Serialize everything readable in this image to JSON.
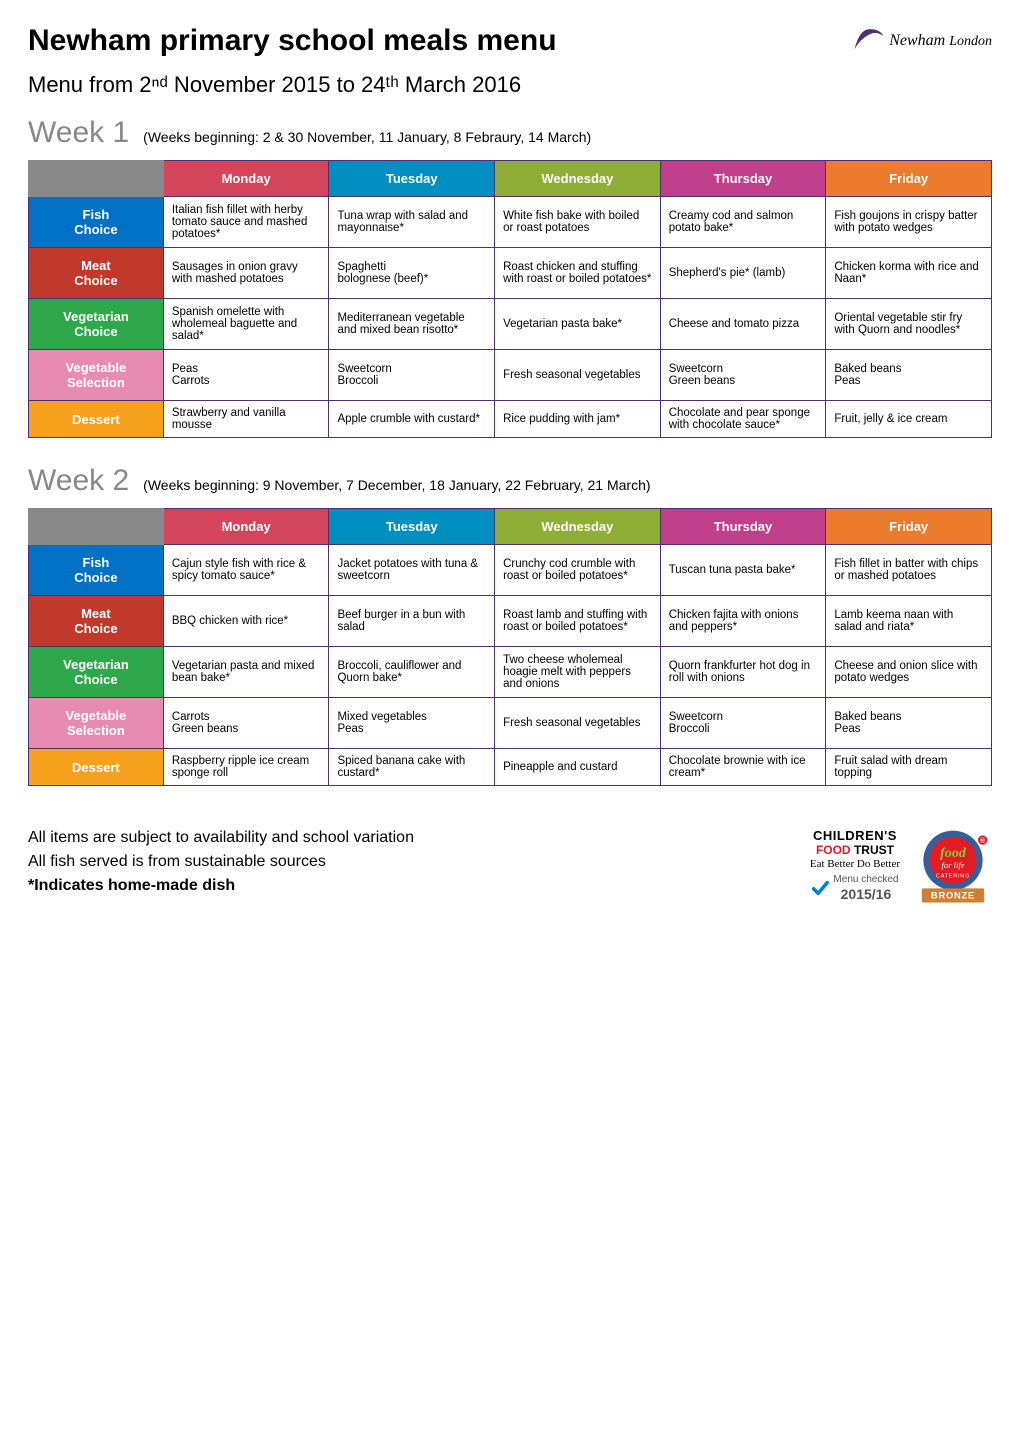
{
  "title": "Newham primary school meals menu",
  "subtitle": "Menu from 2ⁿᵈ November  2015 to 24ᵗʰ March  2016",
  "logo": {
    "text1": "Newham",
    "text2": "London",
    "swoosh_color": "#4f2f70"
  },
  "weeks": [
    {
      "label": "Week 1",
      "desc": "(Weeks beginning: 2 & 30 November, 11 January, 8 Febraury, 14 March)",
      "days": [
        "Monday",
        "Tuesday",
        "Wednesday",
        "Thursday",
        "Friday"
      ],
      "day_colors": [
        "#d4455b",
        "#008fbe",
        "#8fae35",
        "#c03f8a",
        "#ed7b2e"
      ],
      "rows": [
        {
          "label": "Fish\nChoice",
          "color": "#0071c5",
          "cells": [
            "Italian fish fillet with herby tomato sauce and mashed potatoes*",
            "Tuna wrap with salad and mayonnaise*",
            "White fish bake with boiled or roast potatoes",
            "Creamy cod  and salmon potato bake*",
            "Fish goujons in crispy batter with potato wedges"
          ]
        },
        {
          "label": "Meat\nChoice",
          "color": "#c0392b",
          "cells": [
            "Sausages in onion gravy with mashed potatoes",
            "Spaghetti\nbolognese (beef)*",
            "Roast chicken and stuffing with roast or boiled potatoes*",
            "Shepherd's pie* (lamb)",
            "Chicken korma with rice and Naan*"
          ]
        },
        {
          "label": "Vegetarian\nChoice",
          "color": "#2ea84a",
          "cells": [
            "Spanish omelette with wholemeal baguette and salad*",
            "Mediterranean vegetable and mixed bean risotto*",
            "Vegetarian pasta bake*",
            "Cheese and tomato pizza",
            "Oriental vegetable stir fry with Quorn and noodles*"
          ]
        },
        {
          "label": "Vegetable\nSelection",
          "color": "#e78bb0",
          "cells": [
            "Peas\nCarrots",
            "Sweetcorn\nBroccoli",
            "Fresh seasonal vegetables",
            "Sweetcorn\nGreen beans",
            "Baked beans\nPeas"
          ]
        },
        {
          "label": "Dessert",
          "color": "#f6a21e",
          "cells": [
            "Strawberry and vanilla mousse",
            "Apple crumble with custard*",
            "Rice pudding with jam*",
            "Chocolate and pear sponge with chocolate sauce*",
            "Fruit, jelly & ice cream"
          ]
        }
      ]
    },
    {
      "label": "Week 2",
      "desc": "(Weeks beginning: 9 November, 7 December, 18 January, 22 February, 21 March)",
      "days": [
        "Monday",
        "Tuesday",
        "Wednesday",
        "Thursday",
        "Friday"
      ],
      "day_colors": [
        "#d4455b",
        "#008fbe",
        "#8fae35",
        "#c03f8a",
        "#ed7b2e"
      ],
      "rows": [
        {
          "label": "Fish\nChoice",
          "color": "#0071c5",
          "cells": [
            "Cajun style fish with rice & spicy tomato sauce*",
            "Jacket potatoes with tuna & sweetcorn",
            "Crunchy cod crumble with roast or boiled potatoes*",
            "Tuscan tuna pasta bake*",
            "Fish fillet in batter with chips or mashed potatoes"
          ]
        },
        {
          "label": "Meat\nChoice",
          "color": "#c0392b",
          "cells": [
            "BBQ chicken with rice*",
            "Beef burger in a bun with salad",
            "Roast lamb and stuffing with roast or boiled potatoes*",
            "Chicken fajita with onions and peppers*",
            "Lamb keema naan with salad and riata*"
          ]
        },
        {
          "label": "Vegetarian\nChoice",
          "color": "#2ea84a",
          "cells": [
            "Vegetarian pasta and mixed bean bake*",
            "Broccoli, cauliflower and Quorn bake*",
            "Two cheese wholemeal hoagie melt with peppers and onions",
            "Quorn frankfurter hot dog in roll with onions",
            "Cheese and onion slice with potato wedges"
          ]
        },
        {
          "label": "Vegetable\nSelection",
          "color": "#e78bb0",
          "cells": [
            "Carrots\nGreen beans",
            "Mixed vegetables\nPeas",
            "Fresh seasonal vegetables",
            "Sweetcorn\nBroccoli",
            "Baked beans\nPeas"
          ]
        },
        {
          "label": "Dessert",
          "color": "#f6a21e",
          "cells": [
            "Raspberry ripple ice cream sponge roll",
            "Spiced banana cake with custard*",
            "Pineapple and custard",
            "Chocolate brownie with ice cream*",
            "Fruit salad with dream topping"
          ]
        }
      ]
    }
  ],
  "footer": {
    "lines": [
      "All items are subject to availability and school variation",
      "All fish served is from sustainable sources"
    ],
    "bold_line": "*Indicates home-made dish"
  },
  "badges": {
    "cft": {
      "l1": "CHILDREN'S",
      "l2_food": "FOOD",
      "l2_rest": " TRUST",
      "l3": "Eat Better Do Better",
      "check_label": "Menu checked",
      "year": "2015/16",
      "tick_color": "#0083c6"
    },
    "ffl": {
      "ring_color": "#355e9a",
      "inner_color": "#e31b23",
      "banner_color": "#cd7f32",
      "banner_text": "BRONZE",
      "top_text": "food",
      "mid_text": "for life",
      "bot_text": "CATERING"
    }
  },
  "table_border_color": "#4f2f70",
  "corner_bg": "#888888"
}
